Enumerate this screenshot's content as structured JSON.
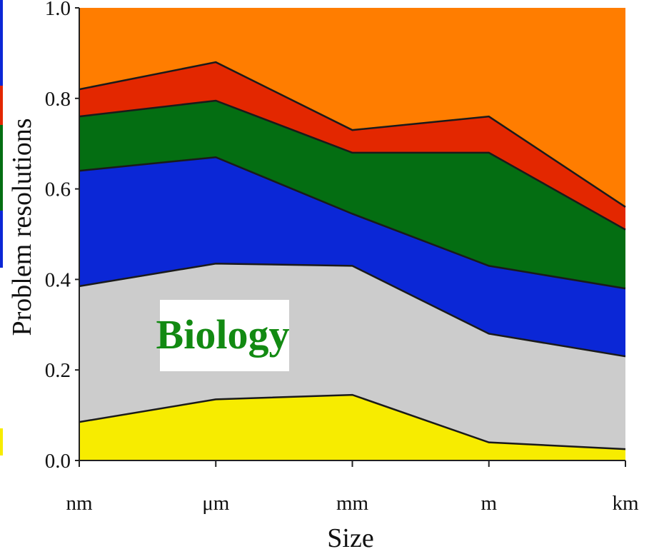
{
  "chart_data": {
    "type": "area",
    "stacked": true,
    "title": "",
    "xlabel": "Size",
    "ylabel": "Problem resolutions",
    "categories": [
      "nm",
      "μm",
      "mm",
      "m",
      "km"
    ],
    "yticks": [
      "0.0",
      "0.2",
      "0.4",
      "0.6",
      "0.8",
      "1.0"
    ],
    "ylim": [
      0,
      1
    ],
    "grid": false,
    "series": [
      {
        "color": "#f7ec00",
        "values": [
          0.085,
          0.135,
          0.145,
          0.04,
          0.025
        ]
      },
      {
        "color": "#cccccc",
        "values": [
          0.3,
          0.3,
          0.285,
          0.24,
          0.205
        ]
      },
      {
        "color": "#0b27d6",
        "values": [
          0.255,
          0.235,
          0.115,
          0.15,
          0.15
        ]
      },
      {
        "color": "#046e12",
        "values": [
          0.12,
          0.125,
          0.135,
          0.25,
          0.13
        ]
      },
      {
        "color": "#e32700",
        "values": [
          0.06,
          0.085,
          0.05,
          0.08,
          0.05
        ]
      },
      {
        "color": "#ff7d00",
        "values": [
          0.18,
          0.12,
          0.27,
          0.24,
          0.44
        ]
      }
    ],
    "annotation": {
      "text": "Biology",
      "color": "#128a12"
    }
  }
}
